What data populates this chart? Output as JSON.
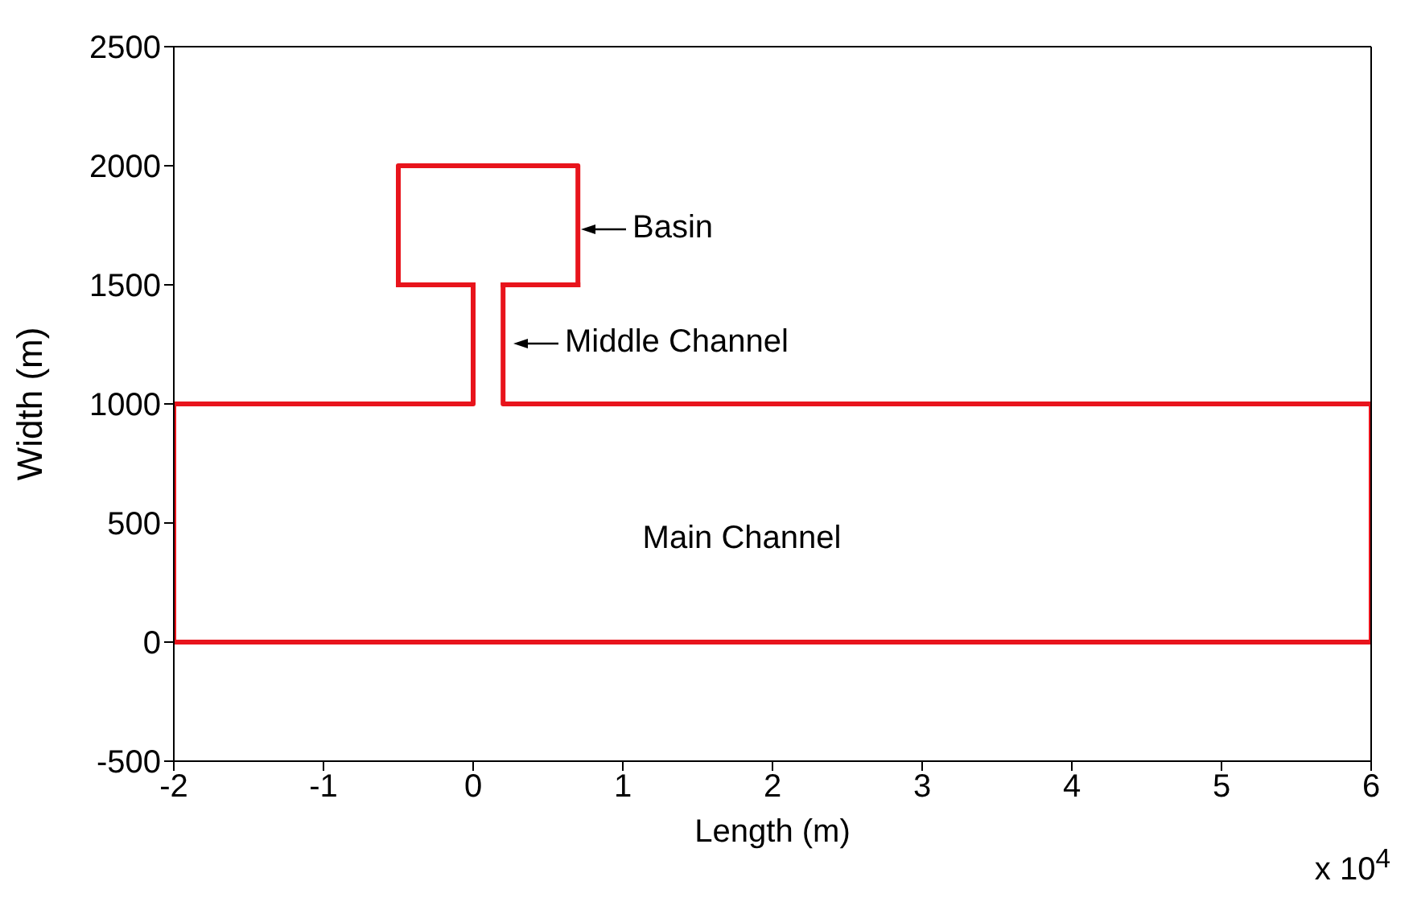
{
  "chart_data": {
    "type": "line",
    "xlabel": "Length (m)",
    "ylabel": "Width (m)",
    "xlim": [
      -2,
      6
    ],
    "xticks": [
      -2,
      -1,
      0,
      1,
      2,
      3,
      4,
      5,
      6
    ],
    "ylim": [
      -500,
      2500
    ],
    "yticks": [
      -500,
      0,
      500,
      1000,
      1500,
      2000,
      2500
    ],
    "grid": false,
    "marker": "none",
    "line_style": "solid",
    "series": [
      {
        "color": "#e8141c",
        "x": [
          -2,
          6
        ],
        "values": [
          0,
          0
        ]
      },
      {
        "color": "#e8141c",
        "x": [
          -2,
          -2,
          0,
          0
        ],
        "values": [
          0,
          1000,
          1000,
          1500
        ]
      },
      {
        "color": "#e8141c",
        "x": [
          -0.5,
          0
        ],
        "values": [
          1500,
          1500
        ]
      },
      {
        "color": "#e8141c",
        "x": [
          -0.5,
          -0.5,
          0.7,
          0.7
        ],
        "values": [
          1500,
          2000,
          2000,
          1500
        ]
      },
      {
        "color": "#e8141c",
        "x": [
          0.2,
          0.7
        ],
        "values": [
          1500,
          1500
        ]
      },
      {
        "color": "#e8141c",
        "x": [
          0.2,
          0.2,
          6,
          6
        ],
        "values": [
          1500,
          1000,
          1000,
          0
        ]
      }
    ],
    "annotations": [
      "Basin",
      "Middle Channel",
      "Main Channel",
      "x 10$^{4}$"
    ]
  }
}
